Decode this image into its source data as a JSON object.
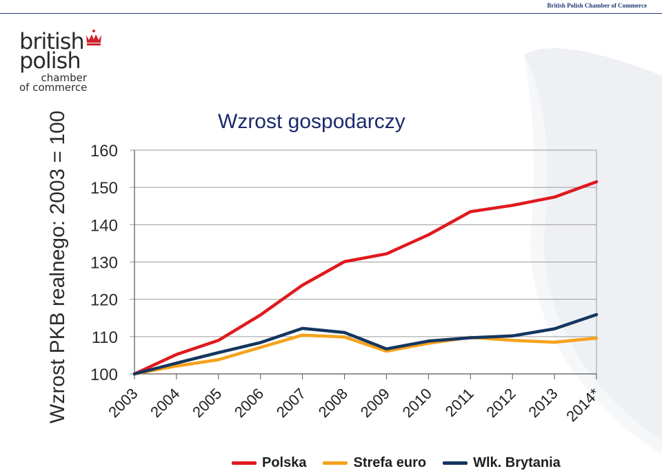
{
  "header": {
    "brand": "British Polish Chamber of Commerce"
  },
  "logo": {
    "line1": "british",
    "line2": "polish",
    "line3": "chamber",
    "line4": "of commerce"
  },
  "colors": {
    "polska": "#e0191e",
    "strefa": "#f5a21b",
    "brytania": "#14365f"
  },
  "chart_data": {
    "type": "line",
    "title": "Wzrost gospodarczy",
    "ylabel": "Wzrost PKB realnego: 2003 = 100",
    "xlabel": "",
    "categories": [
      "2003",
      "2004",
      "2005",
      "2006",
      "2007",
      "2008",
      "2009",
      "2010",
      "2011",
      "2012",
      "2013",
      "2014*"
    ],
    "ylim": [
      100,
      160
    ],
    "yticks": [
      100,
      110,
      120,
      130,
      140,
      150,
      160
    ],
    "grid": true,
    "legend": "bottom",
    "series": [
      {
        "name": "Polska",
        "color": "#e0191e",
        "values": [
          100,
          105.2,
          109,
          115.8,
          123.8,
          130.1,
          132.2,
          137.3,
          143.5,
          145.2,
          147.4,
          151.5
        ]
      },
      {
        "name": "Strefa euro",
        "color": "#f5a21b",
        "values": [
          100,
          102.1,
          103.8,
          107.1,
          110.4,
          109.9,
          106.1,
          108.2,
          109.8,
          109.0,
          108.5,
          109.6
        ]
      },
      {
        "name": "Wlk. Brytania",
        "color": "#14365f",
        "values": [
          100,
          102.9,
          105.7,
          108.4,
          112.2,
          111.1,
          106.7,
          108.8,
          109.7,
          110.2,
          112.1,
          115.9
        ]
      }
    ]
  }
}
